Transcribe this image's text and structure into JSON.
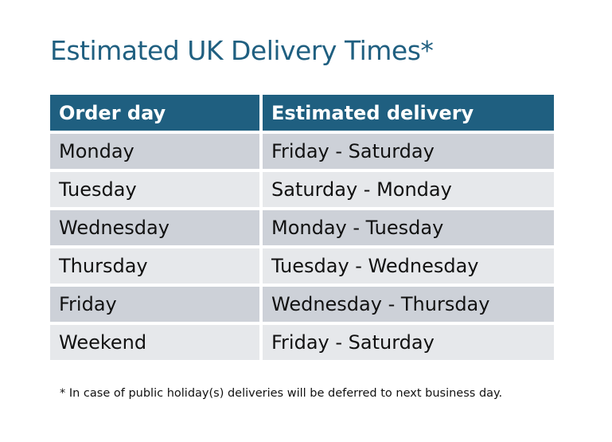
{
  "title": "Estimated UK Delivery Times*",
  "table": {
    "headers": [
      "Order day",
      "Estimated delivery"
    ],
    "rows": [
      [
        "Monday",
        "Friday - Saturday"
      ],
      [
        "Tuesday",
        "Saturday - Monday"
      ],
      [
        "Wednesday",
        "Monday - Tuesday"
      ],
      [
        "Thursday",
        "Tuesday - Wednesday"
      ],
      [
        "Friday",
        "Wednesday - Thursday"
      ],
      [
        "Weekend",
        "Friday - Saturday"
      ]
    ]
  },
  "footnote": "* In case of public holiday(s) deliveries will be deferred to next business day.",
  "colors": {
    "header": "#1f5f80",
    "row_dark": "#cdd1d8",
    "row_light": "#e6e8eb",
    "title": "#1f5f80"
  }
}
